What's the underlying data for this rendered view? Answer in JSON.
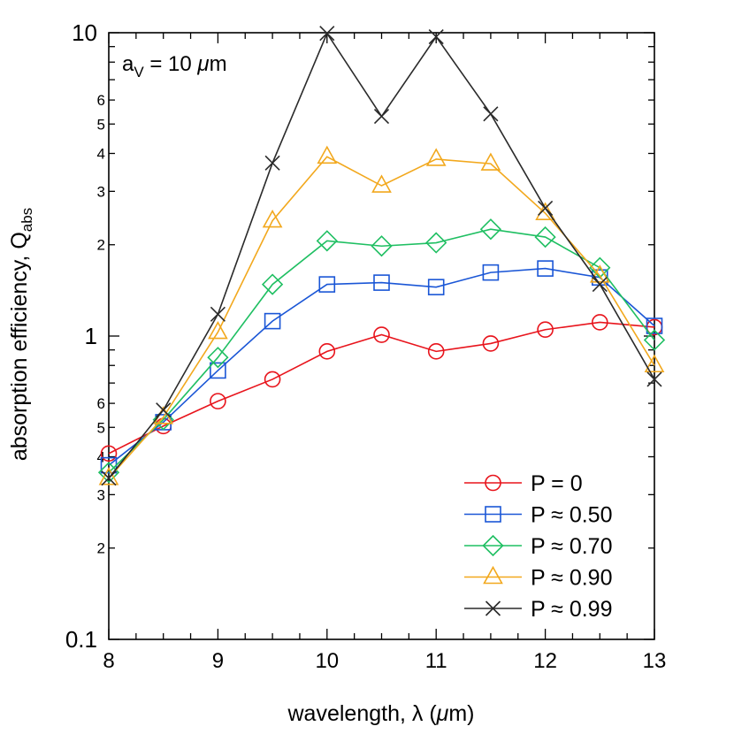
{
  "chart_data": {
    "type": "line",
    "title": "",
    "annotation": {
      "main": "a",
      "sub": "V",
      "rest": " = 10 ",
      "unit_italic": "μ",
      "unit_rest": "m"
    },
    "xlabel": {
      "pre": "wavelength, λ (",
      "italic": "μ",
      "post": "m)"
    },
    "ylabel": {
      "main": "absorption efficiency, Q",
      "sub": "abs"
    },
    "xlim": [
      8,
      13
    ],
    "ylim": [
      0.1,
      10
    ],
    "yscale": "log",
    "grid": false,
    "legend_position": "bottom-right",
    "x": [
      8,
      8.5,
      9,
      9.5,
      10,
      10.5,
      11,
      11.5,
      12,
      12.5,
      13
    ],
    "x_ticks": [
      {
        "v": 8,
        "label": "8"
      },
      {
        "v": 9,
        "label": "9"
      },
      {
        "v": 10,
        "label": "10"
      },
      {
        "v": 11,
        "label": "11"
      },
      {
        "v": 12,
        "label": "12"
      },
      {
        "v": 13,
        "label": "13"
      }
    ],
    "y_major_ticks": [
      {
        "v": 0.1,
        "label": "0.1"
      },
      {
        "v": 1,
        "label": "1"
      },
      {
        "v": 10,
        "label": "10"
      }
    ],
    "y_minor_labeled_ticks": [
      {
        "v": 0.2,
        "label": "2"
      },
      {
        "v": 0.3,
        "label": "3"
      },
      {
        "v": 0.4,
        "label": "4"
      },
      {
        "v": 0.5,
        "label": "5"
      },
      {
        "v": 0.6,
        "label": "6"
      },
      {
        "v": 2,
        "label": "2"
      },
      {
        "v": 3,
        "label": "3"
      },
      {
        "v": 4,
        "label": "4"
      },
      {
        "v": 5,
        "label": "5"
      },
      {
        "v": 6,
        "label": "6"
      }
    ],
    "series": [
      {
        "name": "P = 0",
        "color": "#e8141c",
        "marker": "circle",
        "values": [
          0.41,
          0.505,
          0.61,
          0.72,
          0.89,
          1.01,
          0.89,
          0.945,
          1.05,
          1.11,
          1.07
        ]
      },
      {
        "name": "P ≈ 0.50",
        "color": "#1a56d6",
        "marker": "square",
        "values": [
          0.375,
          0.52,
          0.77,
          1.12,
          1.48,
          1.5,
          1.45,
          1.62,
          1.67,
          1.56,
          1.08
        ]
      },
      {
        "name": "P ≈ 0.70",
        "color": "#1fbf62",
        "marker": "diamond",
        "values": [
          0.355,
          0.53,
          0.85,
          1.48,
          2.06,
          1.98,
          2.03,
          2.25,
          2.12,
          1.68,
          0.97
        ]
      },
      {
        "name": "P ≈ 0.90",
        "color": "#f2a81d",
        "marker": "triangle",
        "values": [
          0.34,
          0.54,
          1.03,
          2.4,
          3.9,
          3.13,
          3.83,
          3.7,
          2.54,
          1.58,
          0.8
        ]
      },
      {
        "name": "P ≈ 0.99",
        "color": "#2a2a2a",
        "marker": "x",
        "values": [
          0.34,
          0.57,
          1.18,
          3.72,
          9.95,
          5.3,
          9.7,
          5.4,
          2.64,
          1.48,
          0.72
        ]
      }
    ]
  }
}
